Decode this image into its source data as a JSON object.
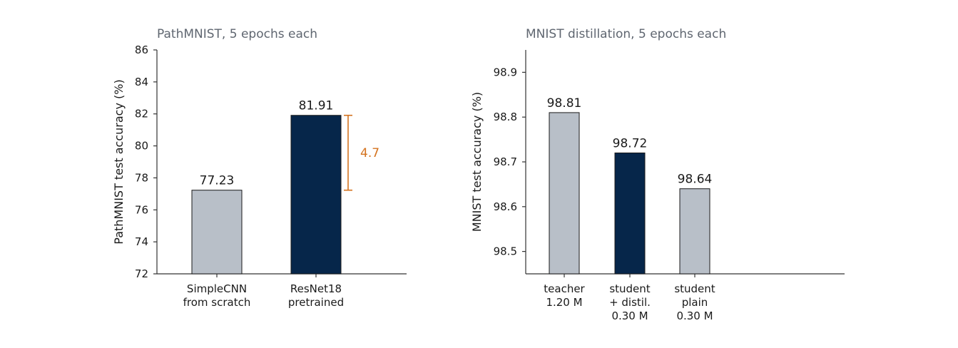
{
  "colors": {
    "light": "#b8bfc8",
    "dark": "#06264a",
    "annotation": "#d4731f"
  },
  "chart_data": [
    {
      "type": "bar",
      "title": "PathMNIST, 5 epochs each",
      "ylabel": "PathMNIST test accuracy (%)",
      "xlabel": "",
      "ylim": [
        72,
        86
      ],
      "yticks": [
        72,
        74,
        76,
        78,
        80,
        82,
        84,
        86
      ],
      "categories": [
        [
          "SimpleCNN",
          "from scratch"
        ],
        [
          "ResNet18",
          "pretrained"
        ]
      ],
      "values": [
        77.23,
        81.91
      ],
      "value_labels": [
        "77.23",
        "81.91"
      ],
      "bar_colors": [
        "light",
        "dark"
      ],
      "annotation": {
        "text": "4.7",
        "from": 77.23,
        "to": 81.91
      }
    },
    {
      "type": "bar",
      "title": "MNIST distillation, 5 epochs each",
      "ylabel": "MNIST test accuracy (%)",
      "xlabel": "",
      "ylim": [
        98.45,
        98.95
      ],
      "yticks": [
        98.5,
        98.6,
        98.7,
        98.8,
        98.9
      ],
      "ytick_labels": [
        "98.5",
        "98.6",
        "98.7",
        "98.8",
        "98.9"
      ],
      "categories": [
        [
          "teacher",
          "1.20 M"
        ],
        [
          "student",
          "+ distil.",
          "0.30 M"
        ],
        [
          "student",
          "plain",
          "0.30 M"
        ]
      ],
      "values": [
        98.81,
        98.72,
        98.64
      ],
      "value_labels": [
        "98.81",
        "98.72",
        "98.64"
      ],
      "bar_colors": [
        "light",
        "dark",
        "light"
      ]
    }
  ]
}
